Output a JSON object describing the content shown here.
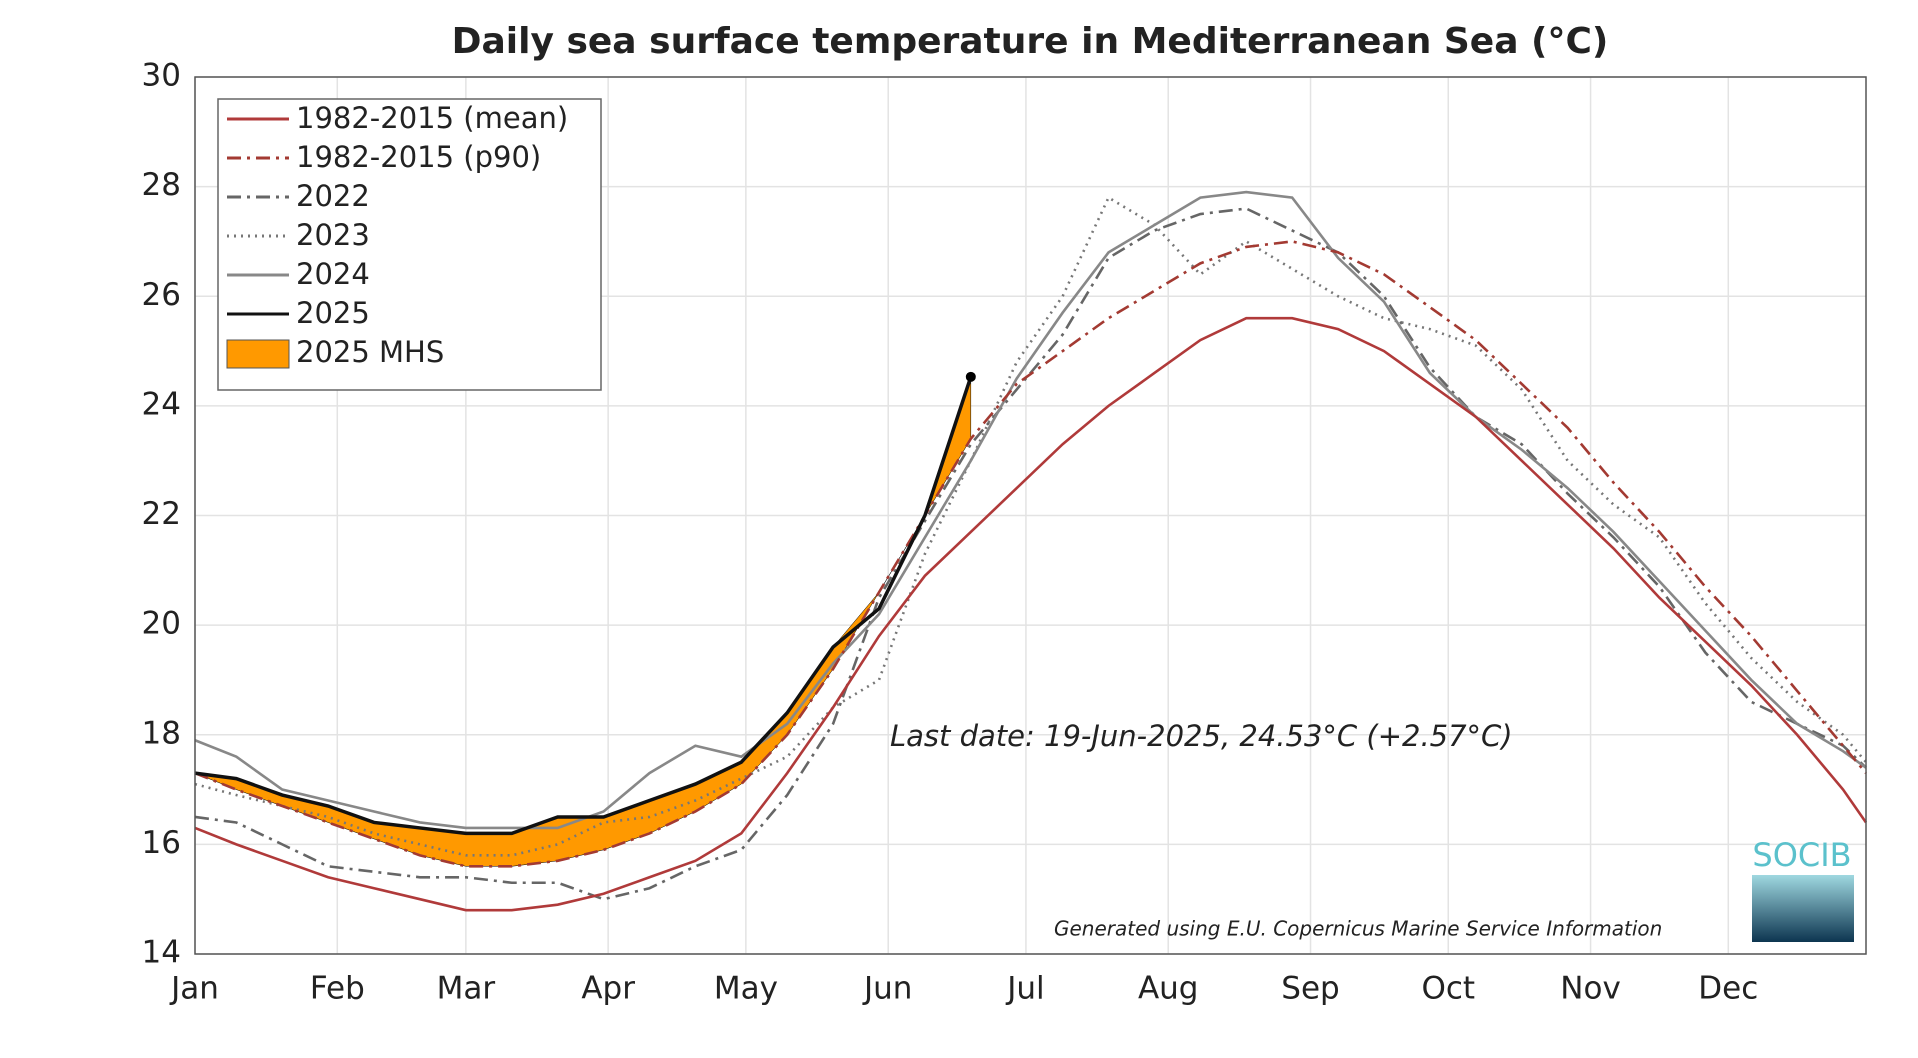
{
  "chart_data": {
    "type": "line",
    "title": "Daily sea surface temperature in Mediterranean Sea (°C)",
    "annotation": "Last date: 19-Jun-2025, 24.53°C (+2.57°C)",
    "footer": "Generated using E.U. Copernicus Marine Service Information",
    "logo_text": "SOCIB",
    "grid": true,
    "legend_position": "upper left",
    "xlim": [
      1,
      365
    ],
    "xticks": [
      {
        "value": 1,
        "label": "Jan"
      },
      {
        "value": 32,
        "label": "Feb"
      },
      {
        "value": 60,
        "label": "Mar"
      },
      {
        "value": 91,
        "label": "Apr"
      },
      {
        "value": 121,
        "label": "May"
      },
      {
        "value": 152,
        "label": "Jun"
      },
      {
        "value": 182,
        "label": "Jul"
      },
      {
        "value": 213,
        "label": "Aug"
      },
      {
        "value": 244,
        "label": "Sep"
      },
      {
        "value": 274,
        "label": "Oct"
      },
      {
        "value": 305,
        "label": "Nov"
      },
      {
        "value": 335,
        "label": "Dec"
      }
    ],
    "ylim": [
      14,
      30
    ],
    "yticks": [
      14,
      16,
      18,
      20,
      22,
      24,
      26,
      28,
      30
    ],
    "x": [
      1,
      10,
      20,
      30,
      40,
      50,
      60,
      70,
      80,
      90,
      100,
      110,
      120,
      130,
      140,
      150,
      160,
      170,
      180,
      190,
      200,
      210,
      220,
      230,
      240,
      250,
      260,
      270,
      280,
      290,
      300,
      310,
      320,
      330,
      340,
      350,
      360,
      365
    ],
    "series": [
      {
        "name": "1982-2015 (mean)",
        "color": "#b03a3a",
        "style": "solid",
        "values": [
          16.3,
          16.0,
          15.7,
          15.4,
          15.2,
          15.0,
          14.8,
          14.8,
          14.9,
          15.1,
          15.4,
          15.7,
          16.2,
          17.3,
          18.5,
          19.8,
          20.9,
          21.7,
          22.5,
          23.3,
          24.0,
          24.6,
          25.2,
          25.6,
          25.6,
          25.4,
          25.0,
          24.4,
          23.8,
          23.0,
          22.2,
          21.4,
          20.5,
          19.7,
          18.9,
          18.0,
          17.0,
          16.4
        ]
      },
      {
        "name": "1982-2015 (p90)",
        "color": "#a33a32",
        "style": "dashdot",
        "values": [
          17.3,
          17.0,
          16.7,
          16.4,
          16.1,
          15.8,
          15.6,
          15.6,
          15.7,
          15.9,
          16.2,
          16.6,
          17.1,
          18.0,
          19.2,
          20.6,
          22.0,
          23.4,
          24.4,
          25.0,
          25.6,
          26.1,
          26.6,
          26.9,
          27.0,
          26.8,
          26.4,
          25.8,
          25.2,
          24.4,
          23.6,
          22.6,
          21.7,
          20.7,
          19.8,
          18.8,
          17.8,
          17.3
        ]
      },
      {
        "name": "2022",
        "color": "#666666",
        "style": "dashdot",
        "values": [
          16.5,
          16.4,
          16.0,
          15.6,
          15.5,
          15.4,
          15.4,
          15.3,
          15.3,
          15.0,
          15.2,
          15.6,
          15.9,
          16.9,
          18.2,
          20.5,
          21.9,
          23.3,
          24.3,
          25.3,
          26.7,
          27.2,
          27.5,
          27.6,
          27.2,
          26.8,
          26.0,
          24.7,
          23.8,
          23.3,
          22.4,
          21.6,
          20.7,
          19.5,
          18.6,
          18.2,
          17.8,
          17.4
        ]
      },
      {
        "name": "2023",
        "color": "#777777",
        "style": "dotted",
        "values": [
          17.1,
          16.9,
          16.7,
          16.5,
          16.2,
          16.0,
          15.8,
          15.8,
          16.0,
          16.4,
          16.5,
          16.8,
          17.2,
          17.6,
          18.5,
          19.0,
          21.3,
          23.0,
          24.8,
          26.0,
          27.8,
          27.3,
          26.4,
          27.0,
          26.5,
          26.0,
          25.6,
          25.4,
          25.1,
          24.3,
          23.0,
          22.2,
          21.6,
          20.4,
          19.4,
          18.6,
          18.0,
          17.5
        ]
      },
      {
        "name": "2024",
        "color": "#888888",
        "style": "solid",
        "values": [
          17.9,
          17.6,
          17.0,
          16.8,
          16.6,
          16.4,
          16.3,
          16.3,
          16.3,
          16.6,
          17.3,
          17.8,
          17.6,
          18.2,
          19.3,
          20.2,
          21.6,
          23.0,
          24.5,
          25.7,
          26.8,
          27.3,
          27.8,
          27.9,
          27.8,
          26.7,
          25.9,
          24.6,
          23.8,
          23.2,
          22.5,
          21.7,
          20.8,
          19.9,
          19.0,
          18.2,
          17.7,
          17.4
        ]
      },
      {
        "name": "2025",
        "color": "#111111",
        "style": "solid",
        "values": [
          17.3,
          17.2,
          16.9,
          16.7,
          16.4,
          16.3,
          16.2,
          16.2,
          16.5,
          16.5,
          16.8,
          17.1,
          17.5,
          18.4,
          19.6,
          20.3,
          22.0,
          24.53,
          null,
          null,
          null,
          null,
          null,
          null,
          null,
          null,
          null,
          null,
          null,
          null,
          null,
          null,
          null,
          null,
          null,
          null,
          null,
          null
        ]
      },
      {
        "name": "2025 MHS",
        "color": "#ff9900",
        "style": "fill"
      }
    ]
  }
}
